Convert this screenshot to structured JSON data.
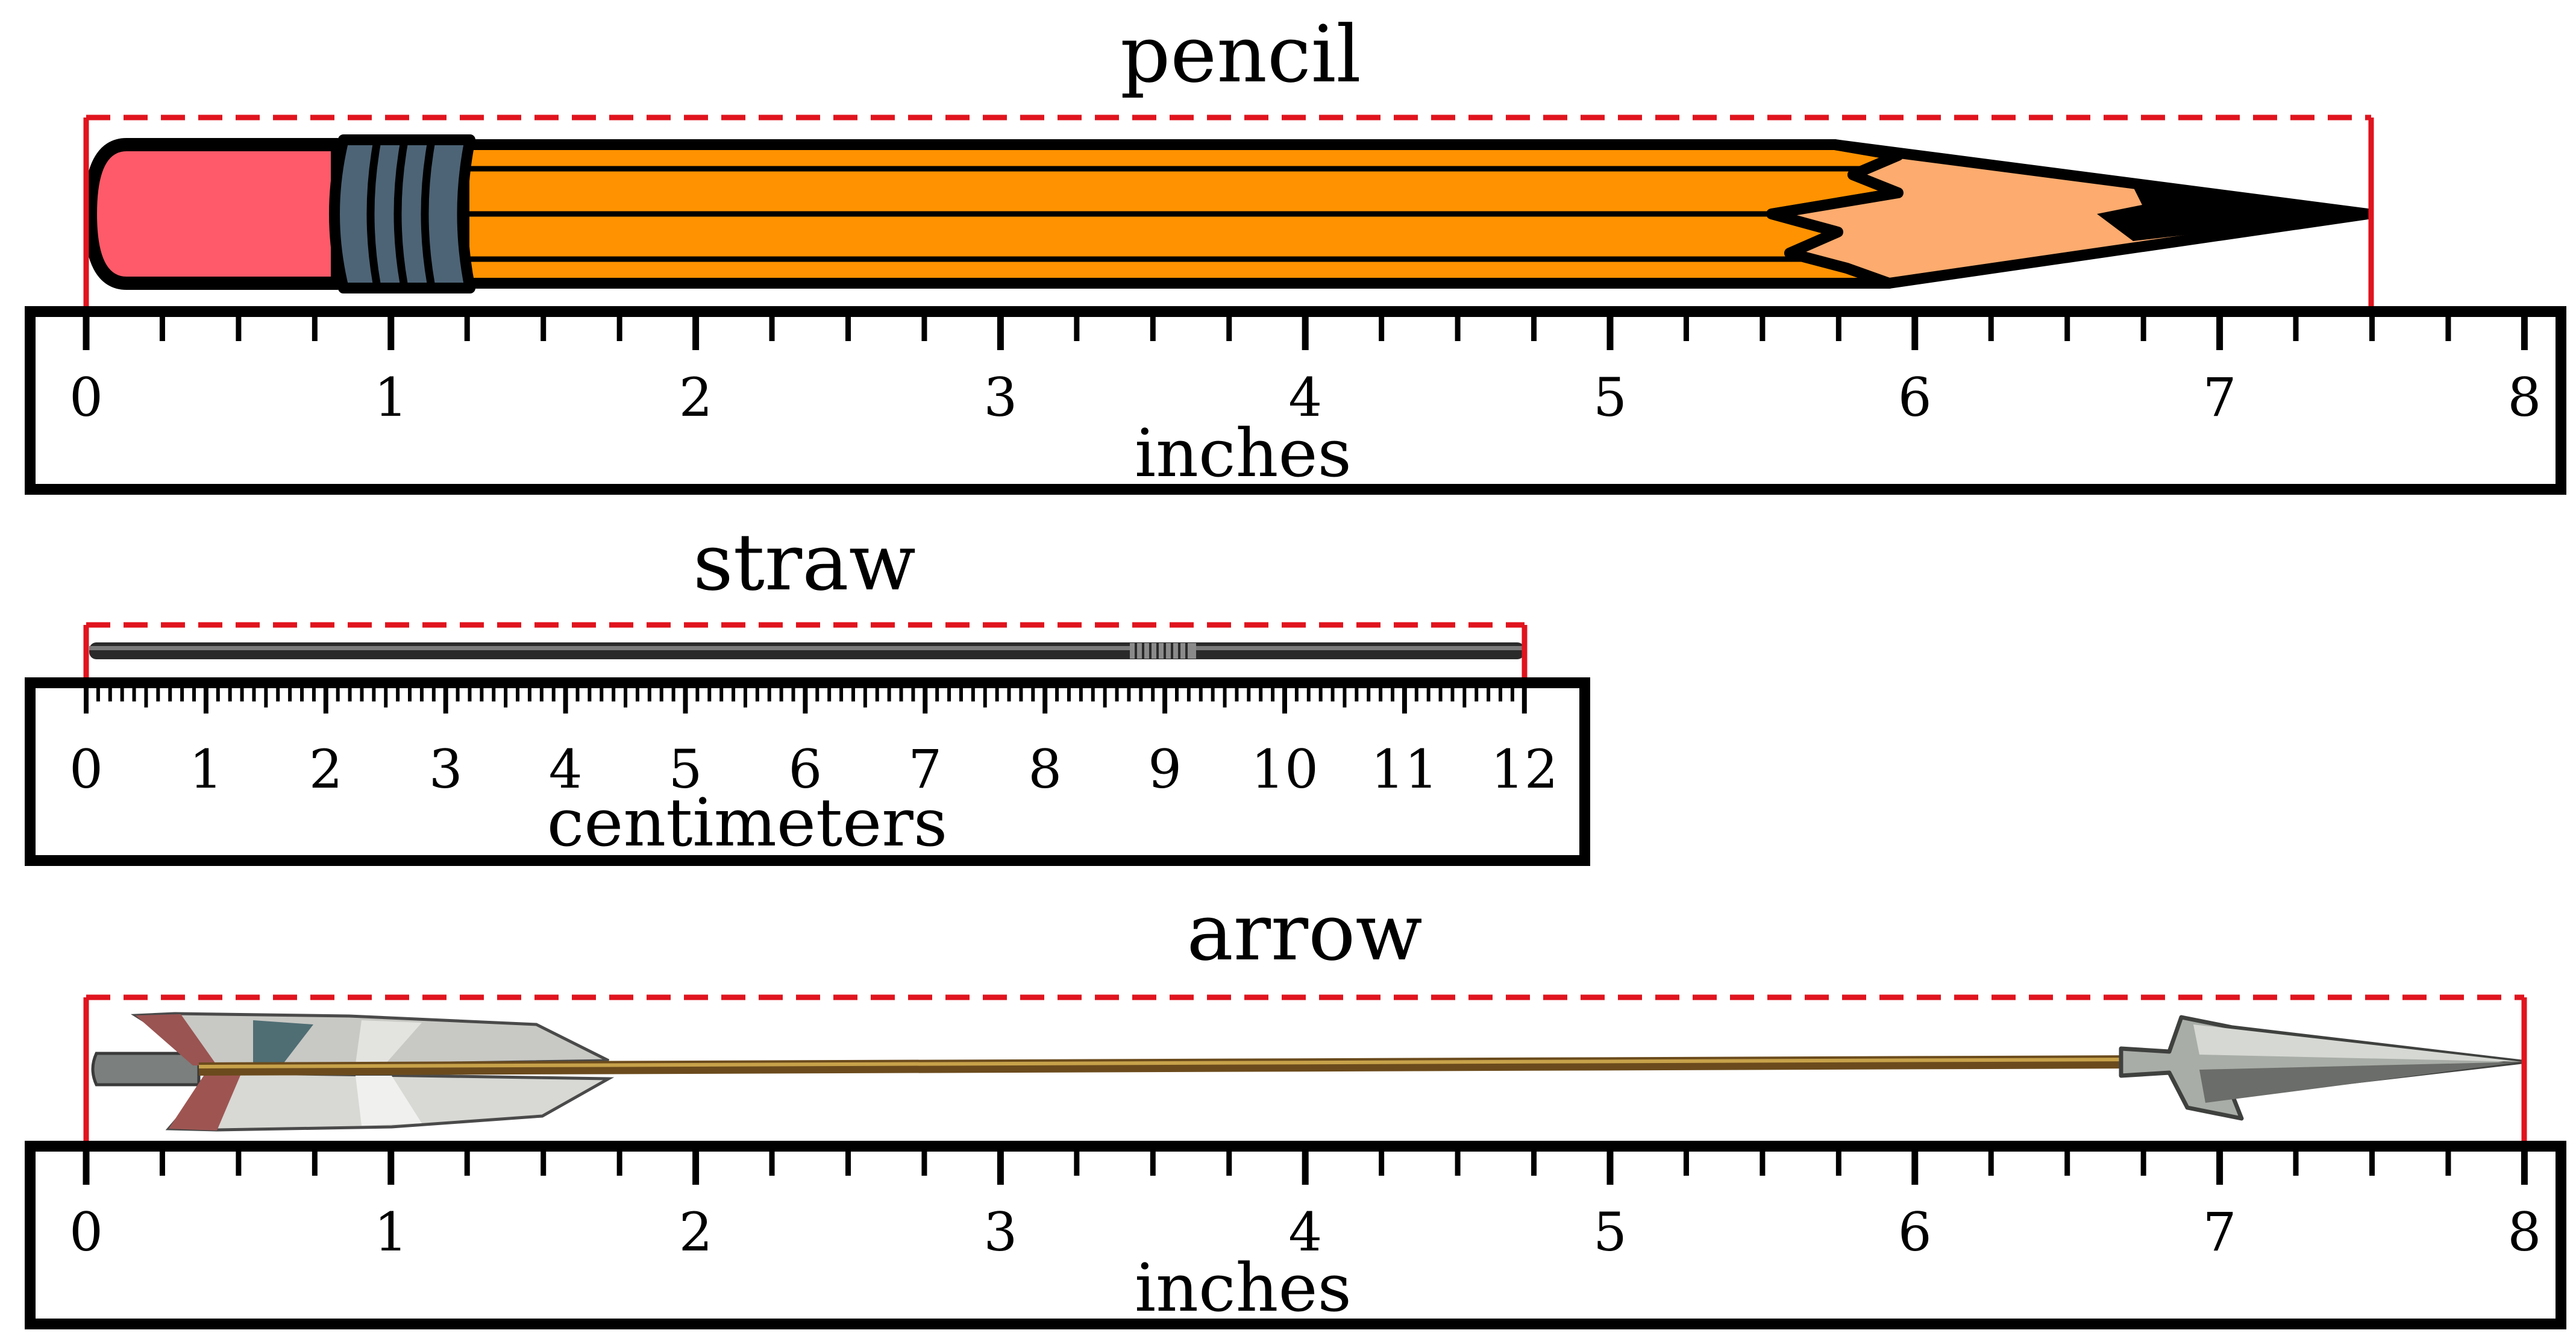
{
  "accent_color": "#e0141e",
  "rulers": [
    {
      "id": "pencil",
      "object_label": "pencil",
      "object_icon": "pencil-icon",
      "unit_label": "inches",
      "max": 8,
      "subdivisions": 4,
      "measured_length": 7.5,
      "tick_labels": [
        "0",
        "1",
        "2",
        "3",
        "4",
        "5",
        "6",
        "7",
        "8"
      ]
    },
    {
      "id": "straw",
      "object_label": "straw",
      "object_icon": "straw-icon",
      "unit_label": "centimeters",
      "max": 12,
      "subdivisions": 10,
      "measured_length": 12,
      "tick_labels": [
        "0",
        "1",
        "2",
        "3",
        "4",
        "5",
        "6",
        "7",
        "8",
        "9",
        "10",
        "11",
        "12"
      ]
    },
    {
      "id": "arrow",
      "object_label": "arrow",
      "object_icon": "arrow-icon",
      "unit_label": "inches",
      "max": 8,
      "subdivisions": 4,
      "measured_length": 8,
      "tick_labels": [
        "0",
        "1",
        "2",
        "3",
        "4",
        "5",
        "6",
        "7",
        "8"
      ]
    }
  ]
}
